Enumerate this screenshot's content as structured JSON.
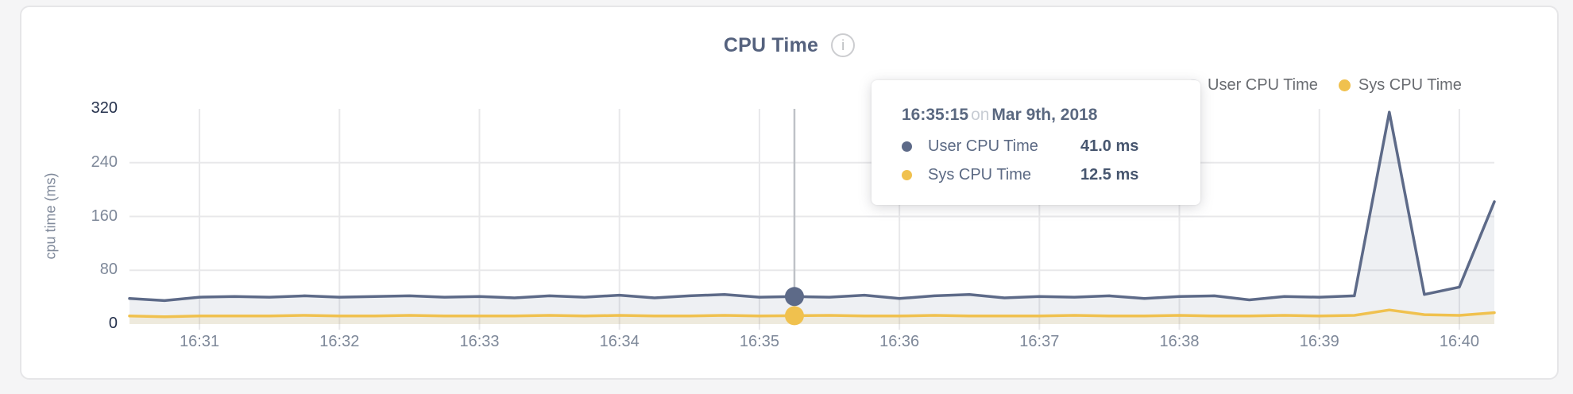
{
  "header": {
    "title": "CPU Time",
    "info_icon": "i"
  },
  "legend": {
    "items": [
      {
        "label": "User CPU Time",
        "dot_color": "#eceef1"
      },
      {
        "label": "Sys CPU Time",
        "dot_color": "#f0c14e"
      }
    ]
  },
  "tooltip": {
    "time": "16:35:15",
    "connector": "on",
    "date": "Mar 9th, 2018",
    "rows": [
      {
        "label": "User CPU Time",
        "value": "41.0 ms"
      },
      {
        "label": "Sys CPU Time",
        "value": "12.5 ms"
      }
    ]
  },
  "chart_data": {
    "type": "area",
    "title": "CPU Time",
    "xlabel": "",
    "ylabel": "cpu time (ms)",
    "ylim": [
      0,
      320
    ],
    "y_ticks": [
      0,
      80,
      160,
      240,
      320
    ],
    "x_ticks": [
      "16:31",
      "16:32",
      "16:33",
      "16:34",
      "16:35",
      "16:36",
      "16:37",
      "16:38",
      "16:39",
      "16:40"
    ],
    "grid": "on",
    "legend_position": "top-right",
    "x": [
      "16:30:30",
      "16:30:45",
      "16:31:00",
      "16:31:15",
      "16:31:30",
      "16:31:45",
      "16:32:00",
      "16:32:15",
      "16:32:30",
      "16:32:45",
      "16:33:00",
      "16:33:15",
      "16:33:30",
      "16:33:45",
      "16:34:00",
      "16:34:15",
      "16:34:30",
      "16:34:45",
      "16:35:00",
      "16:35:15",
      "16:35:30",
      "16:35:45",
      "16:36:00",
      "16:36:15",
      "16:36:30",
      "16:36:45",
      "16:37:00",
      "16:37:15",
      "16:37:30",
      "16:37:45",
      "16:38:00",
      "16:38:15",
      "16:38:30",
      "16:38:45",
      "16:39:00",
      "16:39:15",
      "16:39:30",
      "16:39:45",
      "16:40:00",
      "16:40:15"
    ],
    "series": [
      {
        "name": "User CPU Time",
        "color": "#5d6a88",
        "fill": "rgba(93,106,135,0.10)",
        "values": [
          38,
          35,
          40,
          41,
          40,
          42,
          40,
          41,
          42,
          40,
          41,
          39,
          42,
          40,
          43,
          39,
          42,
          44,
          40,
          41,
          40,
          43,
          38,
          42,
          44,
          39,
          41,
          40,
          42,
          38,
          41,
          42,
          36,
          41,
          40,
          42,
          315,
          44,
          55,
          182
        ]
      },
      {
        "name": "Sys CPU Time",
        "color": "#f0c14e",
        "fill": "rgba(240,193,78,0.13)",
        "values": [
          12,
          11,
          12,
          12,
          12,
          13,
          12,
          12,
          13,
          12,
          12,
          12,
          13,
          12,
          13,
          12,
          12,
          13,
          12,
          12.5,
          13,
          12,
          12,
          13,
          12,
          12,
          12,
          13,
          12,
          12,
          13,
          12,
          12,
          13,
          12,
          13,
          21,
          14,
          13,
          17
        ]
      }
    ],
    "hover_index": 19,
    "hover_line_color": "#bfc2c7",
    "grid_color": "#e8e8ea",
    "axis_text_color": "#7e8899",
    "axis_text_dark_color": "#26324d"
  }
}
